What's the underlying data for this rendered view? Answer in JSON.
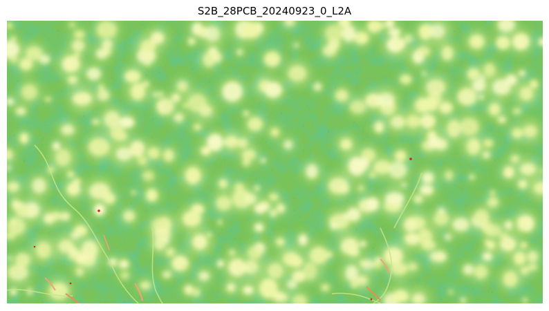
{
  "title": "S2B_28PCB_20240923_0_L2A",
  "raster": {
    "colormap": "RdYlGn",
    "colors": {
      "deep_green": "#1f8f43",
      "mid_green": "#4caf50",
      "light_green": "#7fc75a",
      "pale_yellow_green": "#d8ee9a",
      "cloud_yellow": "#f3f7b4",
      "orange": "#f08a5a",
      "red": "#c62828"
    }
  }
}
